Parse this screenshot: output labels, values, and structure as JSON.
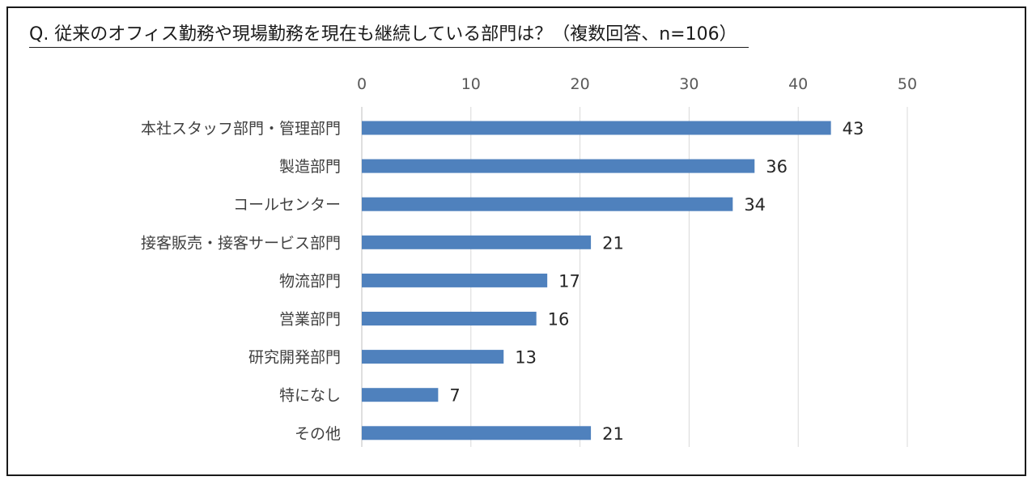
{
  "title": "Q. 従来のオフィス勤務や現場勤務を現在も継続している部門は？（複数回答、n=106）",
  "chart_data": {
    "type": "bar",
    "orientation": "horizontal",
    "title": "Q. 従来のオフィス勤務や現場勤務を現在も継続している部門は？（複数回答、n=106）",
    "categories": [
      "本社スタッフ部門・管理部門",
      "製造部門",
      "コールセンター",
      "接客販売・接客サービス部門",
      "物流部門",
      "営業部門",
      "研究開発部門",
      "特になし",
      "その他"
    ],
    "values": [
      43,
      36,
      34,
      21,
      17,
      16,
      13,
      7,
      21
    ],
    "xlim": [
      0,
      50
    ],
    "xticks": [
      0,
      10,
      20,
      30,
      40,
      50
    ],
    "xaxis_position": "top",
    "grid": true,
    "legend": "none",
    "bar_color": "#4f81bd",
    "data_labels": true
  }
}
